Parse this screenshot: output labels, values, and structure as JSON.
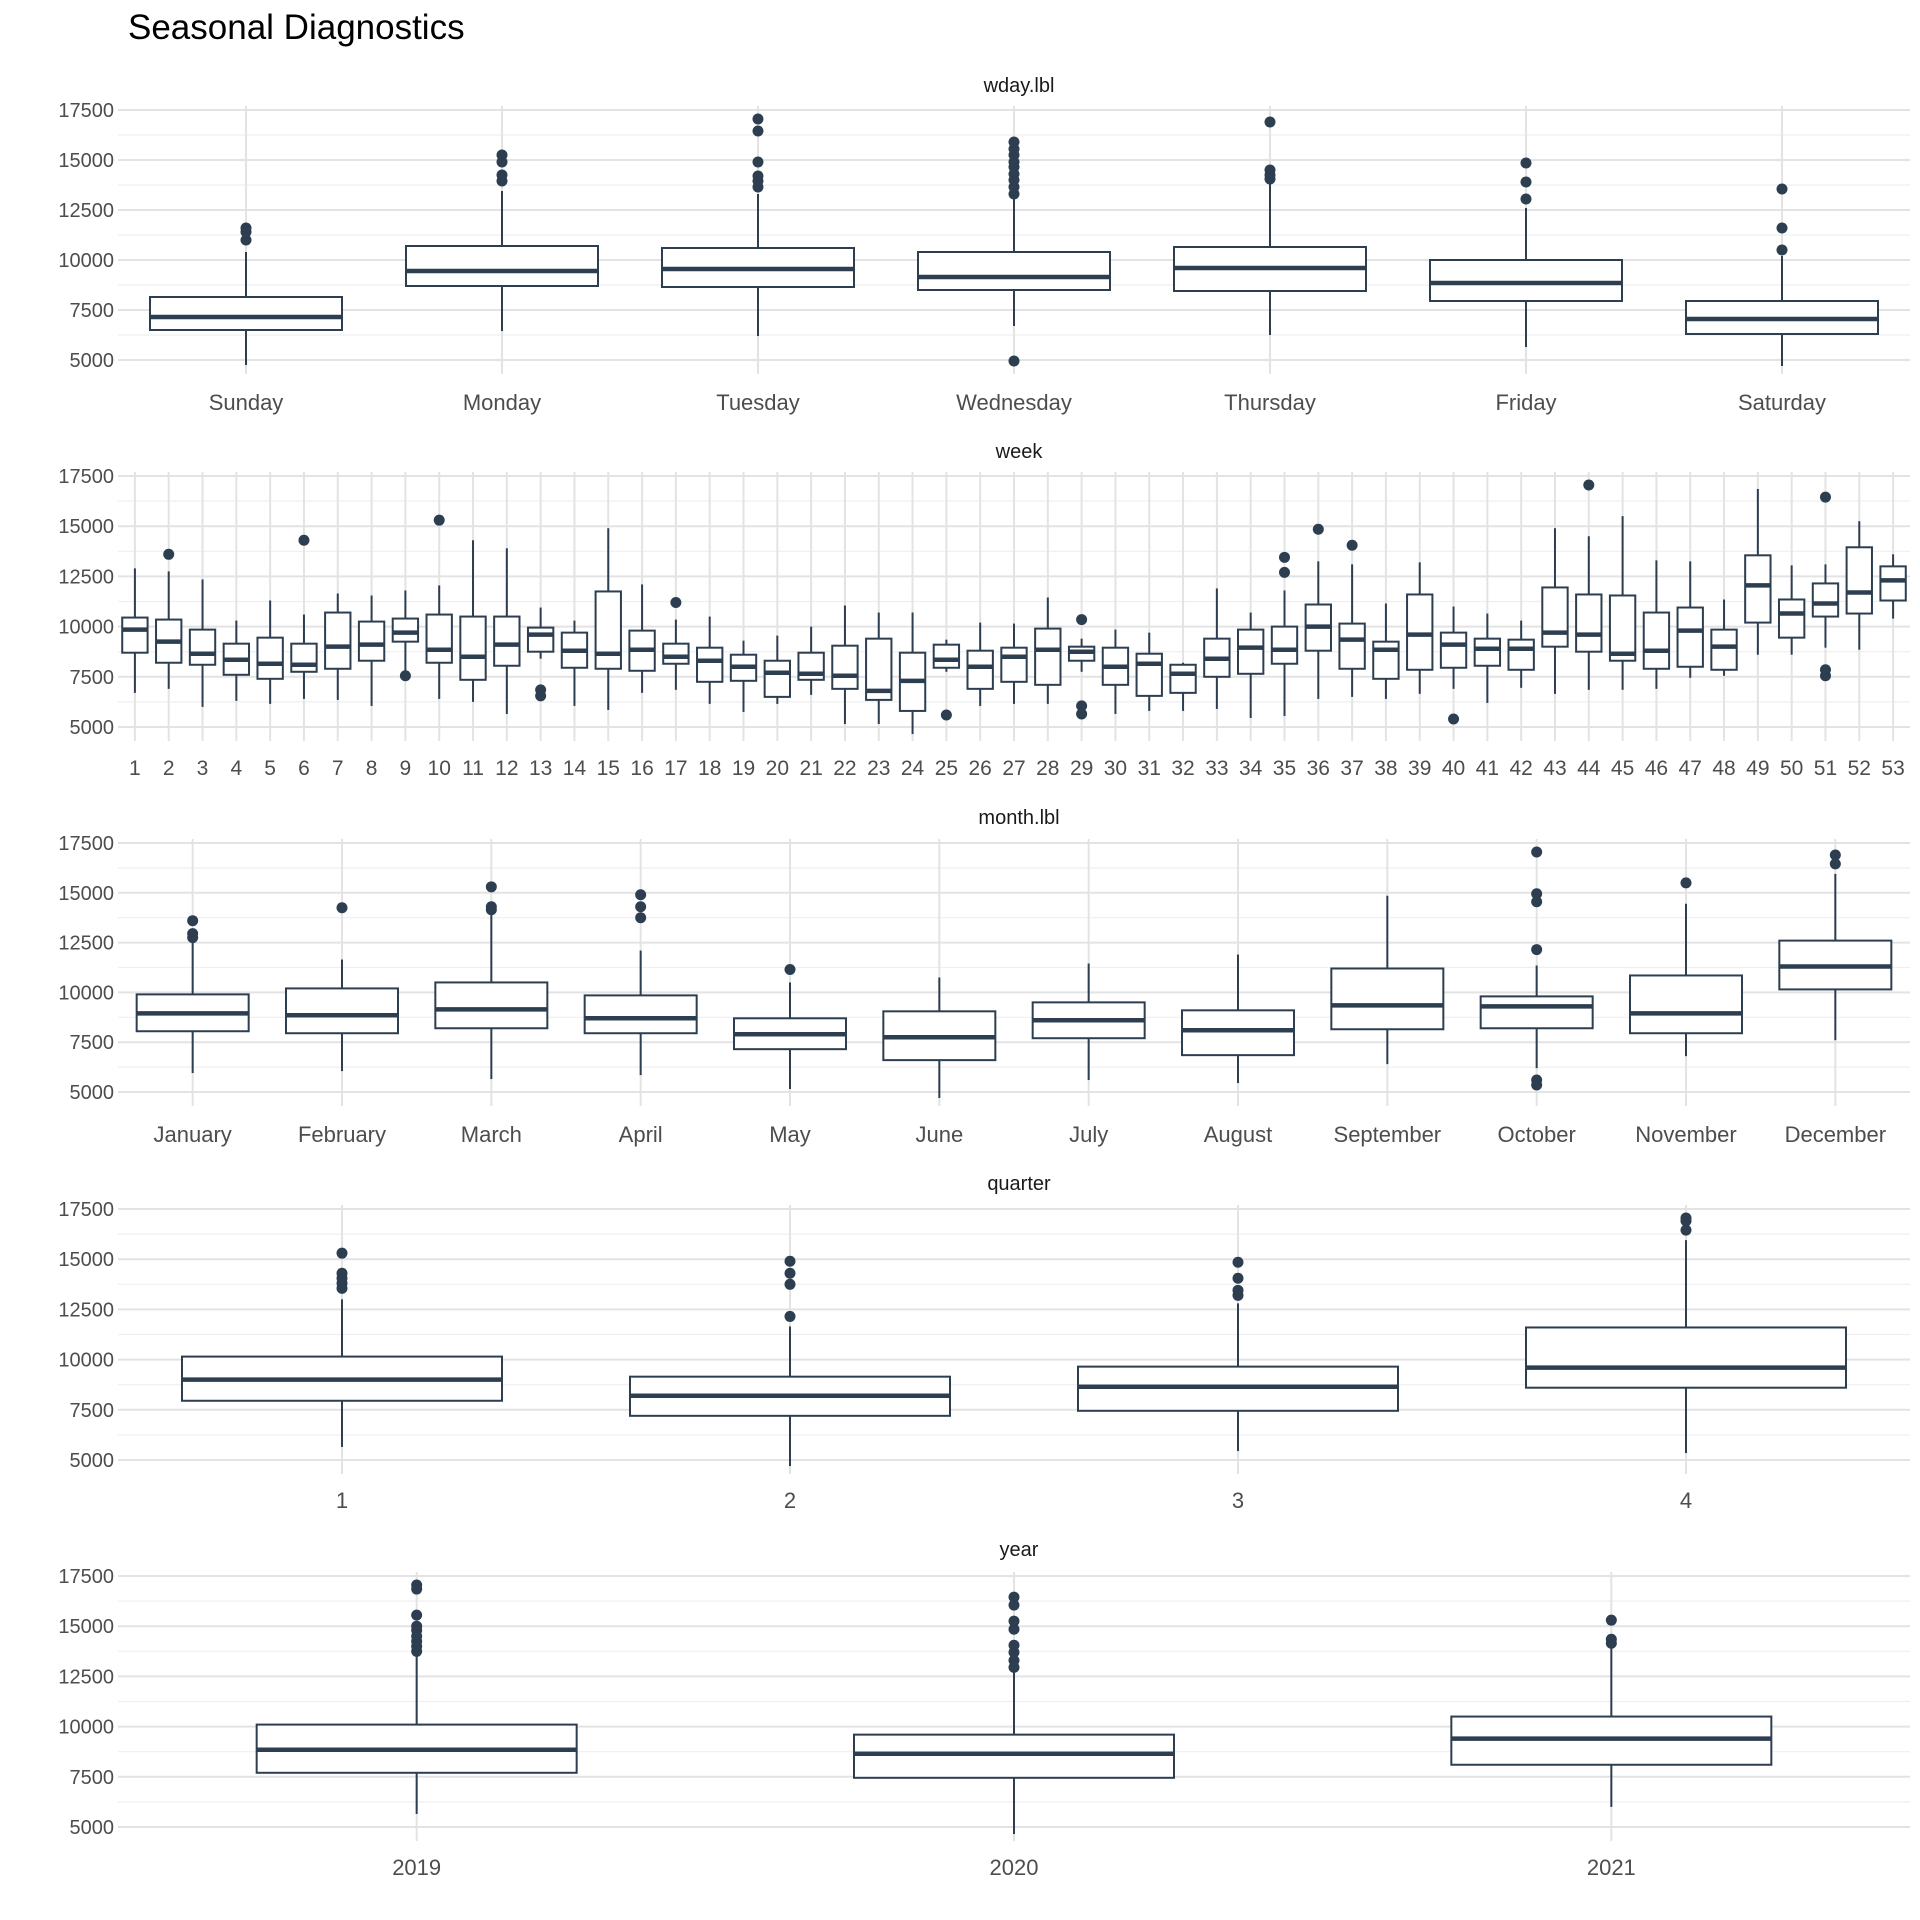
{
  "page": {
    "title": "Seasonal Diagnostics"
  },
  "chart_data": [
    {
      "type": "box",
      "title": "wday.lbl",
      "ylim": [
        4300,
        17700
      ],
      "yticks": [
        5000,
        7500,
        10000,
        12500,
        15000,
        17500
      ],
      "grid": true,
      "categories": [
        "Sunday",
        "Monday",
        "Tuesday",
        "Wednesday",
        "Thursday",
        "Friday",
        "Saturday"
      ],
      "boxes": [
        {
          "min": 4750,
          "q1": 6500,
          "median": 7150,
          "q3": 8150,
          "max": 10400,
          "outliers": [
            11000,
            11400,
            11600
          ]
        },
        {
          "min": 6450,
          "q1": 8700,
          "median": 9450,
          "q3": 10700,
          "max": 13450,
          "outliers": [
            13950,
            14250,
            14900,
            15250
          ]
        },
        {
          "min": 6200,
          "q1": 8650,
          "median": 9550,
          "q3": 10600,
          "max": 13300,
          "outliers": [
            13650,
            13950,
            14200,
            14900,
            16450,
            17050
          ]
        },
        {
          "min": 6700,
          "q1": 8500,
          "median": 9150,
          "q3": 10400,
          "max": 13050,
          "outliers": [
            4950,
            13300,
            13650,
            14000,
            14300,
            14650,
            14900,
            15250,
            15550,
            15900
          ]
        },
        {
          "min": 6250,
          "q1": 8450,
          "median": 9600,
          "q3": 10650,
          "max": 13900,
          "outliers": [
            14050,
            14250,
            14500,
            16900
          ]
        },
        {
          "min": 5650,
          "q1": 7950,
          "median": 8850,
          "q3": 10000,
          "max": 12600,
          "outliers": [
            13050,
            13900,
            14850
          ]
        },
        {
          "min": 4700,
          "q1": 6300,
          "median": 7050,
          "q3": 7950,
          "max": 10200,
          "outliers": [
            10500,
            11600,
            13550
          ]
        }
      ]
    },
    {
      "type": "box",
      "title": "week",
      "ylim": [
        4300,
        17700
      ],
      "yticks": [
        5000,
        7500,
        10000,
        12500,
        15000,
        17500
      ],
      "grid": true,
      "categories": [
        "1",
        "2",
        "3",
        "4",
        "5",
        "6",
        "7",
        "8",
        "9",
        "10",
        "11",
        "12",
        "13",
        "14",
        "15",
        "16",
        "17",
        "18",
        "19",
        "20",
        "21",
        "22",
        "23",
        "24",
        "25",
        "26",
        "27",
        "28",
        "29",
        "30",
        "31",
        "32",
        "33",
        "34",
        "35",
        "36",
        "37",
        "38",
        "39",
        "40",
        "41",
        "42",
        "43",
        "44",
        "45",
        "46",
        "47",
        "48",
        "49",
        "50",
        "51",
        "52",
        "53"
      ],
      "boxes": [
        {
          "min": 6700,
          "q1": 8700,
          "median": 9850,
          "q3": 10450,
          "max": 12900,
          "outliers": []
        },
        {
          "min": 6900,
          "q1": 8200,
          "median": 9250,
          "q3": 10350,
          "max": 12750,
          "outliers": [
            13600
          ]
        },
        {
          "min": 6000,
          "q1": 8100,
          "median": 8650,
          "q3": 9850,
          "max": 12350,
          "outliers": []
        },
        {
          "min": 6300,
          "q1": 7600,
          "median": 8350,
          "q3": 9150,
          "max": 10300,
          "outliers": []
        },
        {
          "min": 6150,
          "q1": 7400,
          "median": 8150,
          "q3": 9450,
          "max": 11300,
          "outliers": []
        },
        {
          "min": 6400,
          "q1": 7750,
          "median": 8100,
          "q3": 9150,
          "max": 10600,
          "outliers": [
            14300
          ]
        },
        {
          "min": 6350,
          "q1": 7900,
          "median": 9000,
          "q3": 10700,
          "max": 11650,
          "outliers": []
        },
        {
          "min": 6050,
          "q1": 8300,
          "median": 9100,
          "q3": 10250,
          "max": 11550,
          "outliers": []
        },
        {
          "min": 7450,
          "q1": 9250,
          "median": 9700,
          "q3": 10400,
          "max": 11800,
          "outliers": [
            7550
          ]
        },
        {
          "min": 6400,
          "q1": 8200,
          "median": 8850,
          "q3": 10600,
          "max": 12050,
          "outliers": [
            15300
          ]
        },
        {
          "min": 6250,
          "q1": 7350,
          "median": 8500,
          "q3": 10500,
          "max": 14300,
          "outliers": []
        },
        {
          "min": 5650,
          "q1": 8050,
          "median": 9100,
          "q3": 10500,
          "max": 13900,
          "outliers": []
        },
        {
          "min": 8400,
          "q1": 8750,
          "median": 9600,
          "q3": 9950,
          "max": 10950,
          "outliers": [
            6550,
            6850
          ]
        },
        {
          "min": 6050,
          "q1": 7950,
          "median": 8800,
          "q3": 9700,
          "max": 10300,
          "outliers": []
        },
        {
          "min": 5850,
          "q1": 7900,
          "median": 8650,
          "q3": 11750,
          "max": 14900,
          "outliers": []
        },
        {
          "min": 6700,
          "q1": 7800,
          "median": 8850,
          "q3": 9800,
          "max": 12100,
          "outliers": []
        },
        {
          "min": 6850,
          "q1": 8150,
          "median": 8500,
          "q3": 9150,
          "max": 10350,
          "outliers": [
            11200
          ]
        },
        {
          "min": 6150,
          "q1": 7250,
          "median": 8300,
          "q3": 8950,
          "max": 10500,
          "outliers": []
        },
        {
          "min": 5750,
          "q1": 7300,
          "median": 8000,
          "q3": 8600,
          "max": 9300,
          "outliers": []
        },
        {
          "min": 6150,
          "q1": 6500,
          "median": 7700,
          "q3": 8300,
          "max": 9550,
          "outliers": []
        },
        {
          "min": 6600,
          "q1": 7350,
          "median": 7650,
          "q3": 8700,
          "max": 10000,
          "outliers": []
        },
        {
          "min": 5150,
          "q1": 6900,
          "median": 7550,
          "q3": 9050,
          "max": 11050,
          "outliers": []
        },
        {
          "min": 5150,
          "q1": 6350,
          "median": 6800,
          "q3": 9400,
          "max": 10700,
          "outliers": []
        },
        {
          "min": 4650,
          "q1": 5800,
          "median": 7300,
          "q3": 8700,
          "max": 10700,
          "outliers": []
        },
        {
          "min": 7750,
          "q1": 7950,
          "median": 8350,
          "q3": 9100,
          "max": 9350,
          "outliers": [
            5600
          ]
        },
        {
          "min": 6050,
          "q1": 6900,
          "median": 8000,
          "q3": 8800,
          "max": 10200,
          "outliers": []
        },
        {
          "min": 6150,
          "q1": 7250,
          "median": 8500,
          "q3": 8950,
          "max": 10150,
          "outliers": []
        },
        {
          "min": 6150,
          "q1": 7100,
          "median": 8850,
          "q3": 9900,
          "max": 11450,
          "outliers": []
        },
        {
          "min": 7750,
          "q1": 8300,
          "median": 8750,
          "q3": 9000,
          "max": 9400,
          "outliers": [
            5650,
            6050,
            10350
          ]
        },
        {
          "min": 5650,
          "q1": 7100,
          "median": 8000,
          "q3": 8950,
          "max": 9850,
          "outliers": []
        },
        {
          "min": 5800,
          "q1": 6550,
          "median": 8150,
          "q3": 8650,
          "max": 9700,
          "outliers": []
        },
        {
          "min": 5800,
          "q1": 6700,
          "median": 7650,
          "q3": 8100,
          "max": 8200,
          "outliers": []
        },
        {
          "min": 5900,
          "q1": 7500,
          "median": 8400,
          "q3": 9400,
          "max": 11900,
          "outliers": []
        },
        {
          "min": 5450,
          "q1": 7650,
          "median": 8950,
          "q3": 9850,
          "max": 10700,
          "outliers": []
        },
        {
          "min": 5550,
          "q1": 8150,
          "median": 8850,
          "q3": 10000,
          "max": 11800,
          "outliers": [
            12700,
            13450
          ]
        },
        {
          "min": 6400,
          "q1": 8800,
          "median": 10000,
          "q3": 11100,
          "max": 13250,
          "outliers": [
            14850
          ]
        },
        {
          "min": 6500,
          "q1": 7900,
          "median": 9350,
          "q3": 10150,
          "max": 13100,
          "outliers": [
            14050
          ]
        },
        {
          "min": 6400,
          "q1": 7400,
          "median": 8850,
          "q3": 9250,
          "max": 11150,
          "outliers": []
        },
        {
          "min": 6650,
          "q1": 7850,
          "median": 9600,
          "q3": 11600,
          "max": 13200,
          "outliers": []
        },
        {
          "min": 6900,
          "q1": 7950,
          "median": 9100,
          "q3": 9700,
          "max": 11000,
          "outliers": [
            5400
          ]
        },
        {
          "min": 6200,
          "q1": 8050,
          "median": 8900,
          "q3": 9400,
          "max": 10650,
          "outliers": []
        },
        {
          "min": 6950,
          "q1": 7850,
          "median": 8900,
          "q3": 9350,
          "max": 10300,
          "outliers": []
        },
        {
          "min": 6650,
          "q1": 9000,
          "median": 9700,
          "q3": 11950,
          "max": 14900,
          "outliers": []
        },
        {
          "min": 6850,
          "q1": 8750,
          "median": 9600,
          "q3": 11600,
          "max": 14500,
          "outliers": [
            17050
          ]
        },
        {
          "min": 6850,
          "q1": 8300,
          "median": 8650,
          "q3": 11550,
          "max": 15500,
          "outliers": []
        },
        {
          "min": 6900,
          "q1": 7900,
          "median": 8800,
          "q3": 10700,
          "max": 13300,
          "outliers": []
        },
        {
          "min": 7450,
          "q1": 8000,
          "median": 9800,
          "q3": 10950,
          "max": 13250,
          "outliers": []
        },
        {
          "min": 7550,
          "q1": 7850,
          "median": 9000,
          "q3": 9850,
          "max": 11350,
          "outliers": []
        },
        {
          "min": 8600,
          "q1": 10200,
          "median": 12050,
          "q3": 13550,
          "max": 16850,
          "outliers": []
        },
        {
          "min": 8600,
          "q1": 9450,
          "median": 10650,
          "q3": 11350,
          "max": 13050,
          "outliers": []
        },
        {
          "min": 8950,
          "q1": 10500,
          "median": 11150,
          "q3": 12150,
          "max": 13100,
          "outliers": [
            7550,
            7850,
            16450
          ]
        },
        {
          "min": 8850,
          "q1": 10650,
          "median": 11700,
          "q3": 13950,
          "max": 15250,
          "outliers": []
        },
        {
          "min": 10400,
          "q1": 11300,
          "median": 12300,
          "q3": 13000,
          "max": 13600,
          "outliers": []
        }
      ]
    },
    {
      "type": "box",
      "title": "month.lbl",
      "ylim": [
        4300,
        17700
      ],
      "yticks": [
        5000,
        7500,
        10000,
        12500,
        15000,
        17500
      ],
      "grid": true,
      "categories": [
        "January",
        "February",
        "March",
        "April",
        "May",
        "June",
        "July",
        "August",
        "September",
        "October",
        "November",
        "December"
      ],
      "boxes": [
        {
          "min": 5950,
          "q1": 8050,
          "median": 8950,
          "q3": 9900,
          "max": 12600,
          "outliers": [
            12750,
            12950,
            13600
          ]
        },
        {
          "min": 6050,
          "q1": 7950,
          "median": 8850,
          "q3": 10200,
          "max": 11650,
          "outliers": [
            14250
          ]
        },
        {
          "min": 5650,
          "q1": 8200,
          "median": 9150,
          "q3": 10500,
          "max": 14000,
          "outliers": [
            14150,
            14300,
            15300
          ]
        },
        {
          "min": 5850,
          "q1": 7950,
          "median": 8700,
          "q3": 9850,
          "max": 12100,
          "outliers": [
            13750,
            14300,
            14900
          ]
        },
        {
          "min": 5150,
          "q1": 7150,
          "median": 7900,
          "q3": 8700,
          "max": 10500,
          "outliers": [
            11150
          ]
        },
        {
          "min": 4700,
          "q1": 6600,
          "median": 7750,
          "q3": 9050,
          "max": 10750,
          "outliers": []
        },
        {
          "min": 5600,
          "q1": 7700,
          "median": 8600,
          "q3": 9500,
          "max": 11450,
          "outliers": []
        },
        {
          "min": 5450,
          "q1": 6850,
          "median": 8100,
          "q3": 9100,
          "max": 11900,
          "outliers": []
        },
        {
          "min": 6400,
          "q1": 8150,
          "median": 9350,
          "q3": 11200,
          "max": 14850,
          "outliers": []
        },
        {
          "min": 6200,
          "q1": 8200,
          "median": 9300,
          "q3": 9800,
          "max": 11350,
          "outliers": [
            5350,
            5600,
            12150,
            14550,
            14950,
            17050
          ]
        },
        {
          "min": 6800,
          "q1": 7950,
          "median": 8950,
          "q3": 10850,
          "max": 14450,
          "outliers": [
            15500
          ]
        },
        {
          "min": 7600,
          "q1": 10150,
          "median": 11300,
          "q3": 12600,
          "max": 15950,
          "outliers": [
            16450,
            16900
          ]
        }
      ]
    },
    {
      "type": "box",
      "title": "quarter",
      "ylim": [
        4300,
        17700
      ],
      "yticks": [
        5000,
        7500,
        10000,
        12500,
        15000,
        17500
      ],
      "grid": true,
      "categories": [
        "1",
        "2",
        "3",
        "4"
      ],
      "boxes": [
        {
          "min": 5650,
          "q1": 7950,
          "median": 9000,
          "q3": 10150,
          "max": 13000,
          "outliers": [
            13550,
            13800,
            14050,
            14300,
            15300
          ]
        },
        {
          "min": 4700,
          "q1": 7200,
          "median": 8200,
          "q3": 9150,
          "max": 11650,
          "outliers": [
            12150,
            13750,
            14300,
            14900
          ]
        },
        {
          "min": 5450,
          "q1": 7450,
          "median": 8650,
          "q3": 9650,
          "max": 12800,
          "outliers": [
            13200,
            13450,
            14050,
            14850
          ]
        },
        {
          "min": 5350,
          "q1": 8600,
          "median": 9600,
          "q3": 11600,
          "max": 15950,
          "outliers": [
            16450,
            16900,
            17050
          ]
        }
      ]
    },
    {
      "type": "box",
      "title": "year",
      "ylim": [
        4300,
        17700
      ],
      "yticks": [
        5000,
        7500,
        10000,
        12500,
        15000,
        17500
      ],
      "grid": true,
      "categories": [
        "2019",
        "2020",
        "2021"
      ],
      "boxes": [
        {
          "min": 5650,
          "q1": 7700,
          "median": 8850,
          "q3": 10100,
          "max": 13500,
          "outliers": [
            13750,
            14000,
            14250,
            14500,
            14800,
            15000,
            15550,
            16850,
            17050
          ]
        },
        {
          "min": 4650,
          "q1": 7450,
          "median": 8650,
          "q3": 9600,
          "max": 12700,
          "outliers": [
            12950,
            13300,
            13700,
            14050,
            14850,
            15250,
            16050,
            16450
          ]
        },
        {
          "min": 6000,
          "q1": 8100,
          "median": 9400,
          "q3": 10500,
          "max": 13900,
          "outliers": [
            14150,
            14350,
            15300
          ]
        }
      ]
    }
  ]
}
